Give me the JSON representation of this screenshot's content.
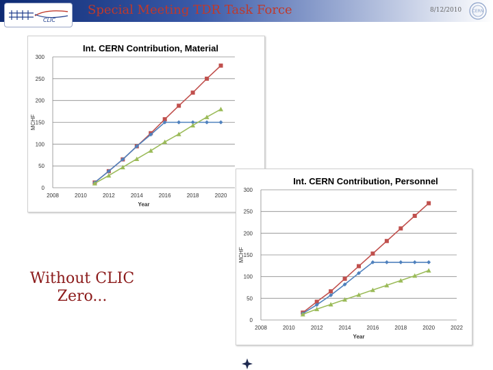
{
  "header": {
    "logo_text": "CLIC",
    "title": "Special Meeting TDR Task Force",
    "date": "8/12/2010",
    "cern_logo_text": "CERN"
  },
  "caption": {
    "line1": "Without CLIC",
    "line2": "Zero..."
  },
  "colors": {
    "material": "#c0504d",
    "personnel": "#4f81bd",
    "third": "#9bbb59"
  },
  "chart_data": [
    {
      "type": "line",
      "title": "Int. CERN Contribution, Material",
      "xlabel": "Year",
      "ylabel": "MCHF",
      "x_ticks": [
        2008,
        2010,
        2012,
        2014,
        2016,
        2018,
        2020
      ],
      "y_ticks": [
        0,
        50,
        100,
        150,
        200,
        250,
        300
      ],
      "xlim": [
        2008,
        2021
      ],
      "ylim": [
        0,
        300
      ],
      "grid": true,
      "series": [
        {
          "marker": "square",
          "color": "#c0504d",
          "x": [
            2011,
            2012,
            2013,
            2014,
            2015,
            2016,
            2017,
            2018,
            2019,
            2020
          ],
          "y": [
            12,
            38,
            65,
            95,
            125,
            157,
            188,
            218,
            250,
            280
          ]
        },
        {
          "marker": "diamond",
          "color": "#4f81bd",
          "x": [
            2011,
            2012,
            2013,
            2014,
            2015,
            2016,
            2017,
            2018,
            2019,
            2020
          ],
          "y": [
            12,
            38,
            65,
            95,
            122,
            150,
            150,
            150,
            150,
            150
          ]
        },
        {
          "marker": "triangle",
          "color": "#9bbb59",
          "x": [
            2011,
            2012,
            2013,
            2014,
            2015,
            2016,
            2017,
            2018,
            2019,
            2020
          ],
          "y": [
            10,
            28,
            47,
            66,
            85,
            105,
            123,
            143,
            162,
            180
          ]
        }
      ]
    },
    {
      "type": "line",
      "title": "Int. CERN Contribution, Personnel",
      "xlabel": "Year",
      "ylabel": "MCHF",
      "x_ticks": [
        2008,
        2010,
        2012,
        2014,
        2016,
        2018,
        2020,
        2022
      ],
      "y_ticks": [
        0,
        50,
        100,
        150,
        200,
        250,
        300
      ],
      "xlim": [
        2008,
        2022
      ],
      "ylim": [
        0,
        300
      ],
      "grid": true,
      "series": [
        {
          "marker": "square",
          "color": "#c0504d",
          "x": [
            2011,
            2012,
            2013,
            2014,
            2015,
            2016,
            2017,
            2018,
            2019,
            2020
          ],
          "y": [
            17,
            42,
            66,
            95,
            124,
            153,
            182,
            211,
            240,
            269
          ]
        },
        {
          "marker": "diamond",
          "color": "#4f81bd",
          "x": [
            2011,
            2012,
            2013,
            2014,
            2015,
            2016,
            2017,
            2018,
            2019,
            2020
          ],
          "y": [
            15,
            35,
            57,
            82,
            108,
            133,
            133,
            133,
            133,
            133
          ]
        },
        {
          "marker": "triangle",
          "color": "#9bbb59",
          "x": [
            2011,
            2012,
            2013,
            2014,
            2015,
            2016,
            2017,
            2018,
            2019,
            2020
          ],
          "y": [
            13,
            25,
            36,
            47,
            58,
            69,
            80,
            91,
            102,
            114
          ]
        }
      ]
    }
  ]
}
